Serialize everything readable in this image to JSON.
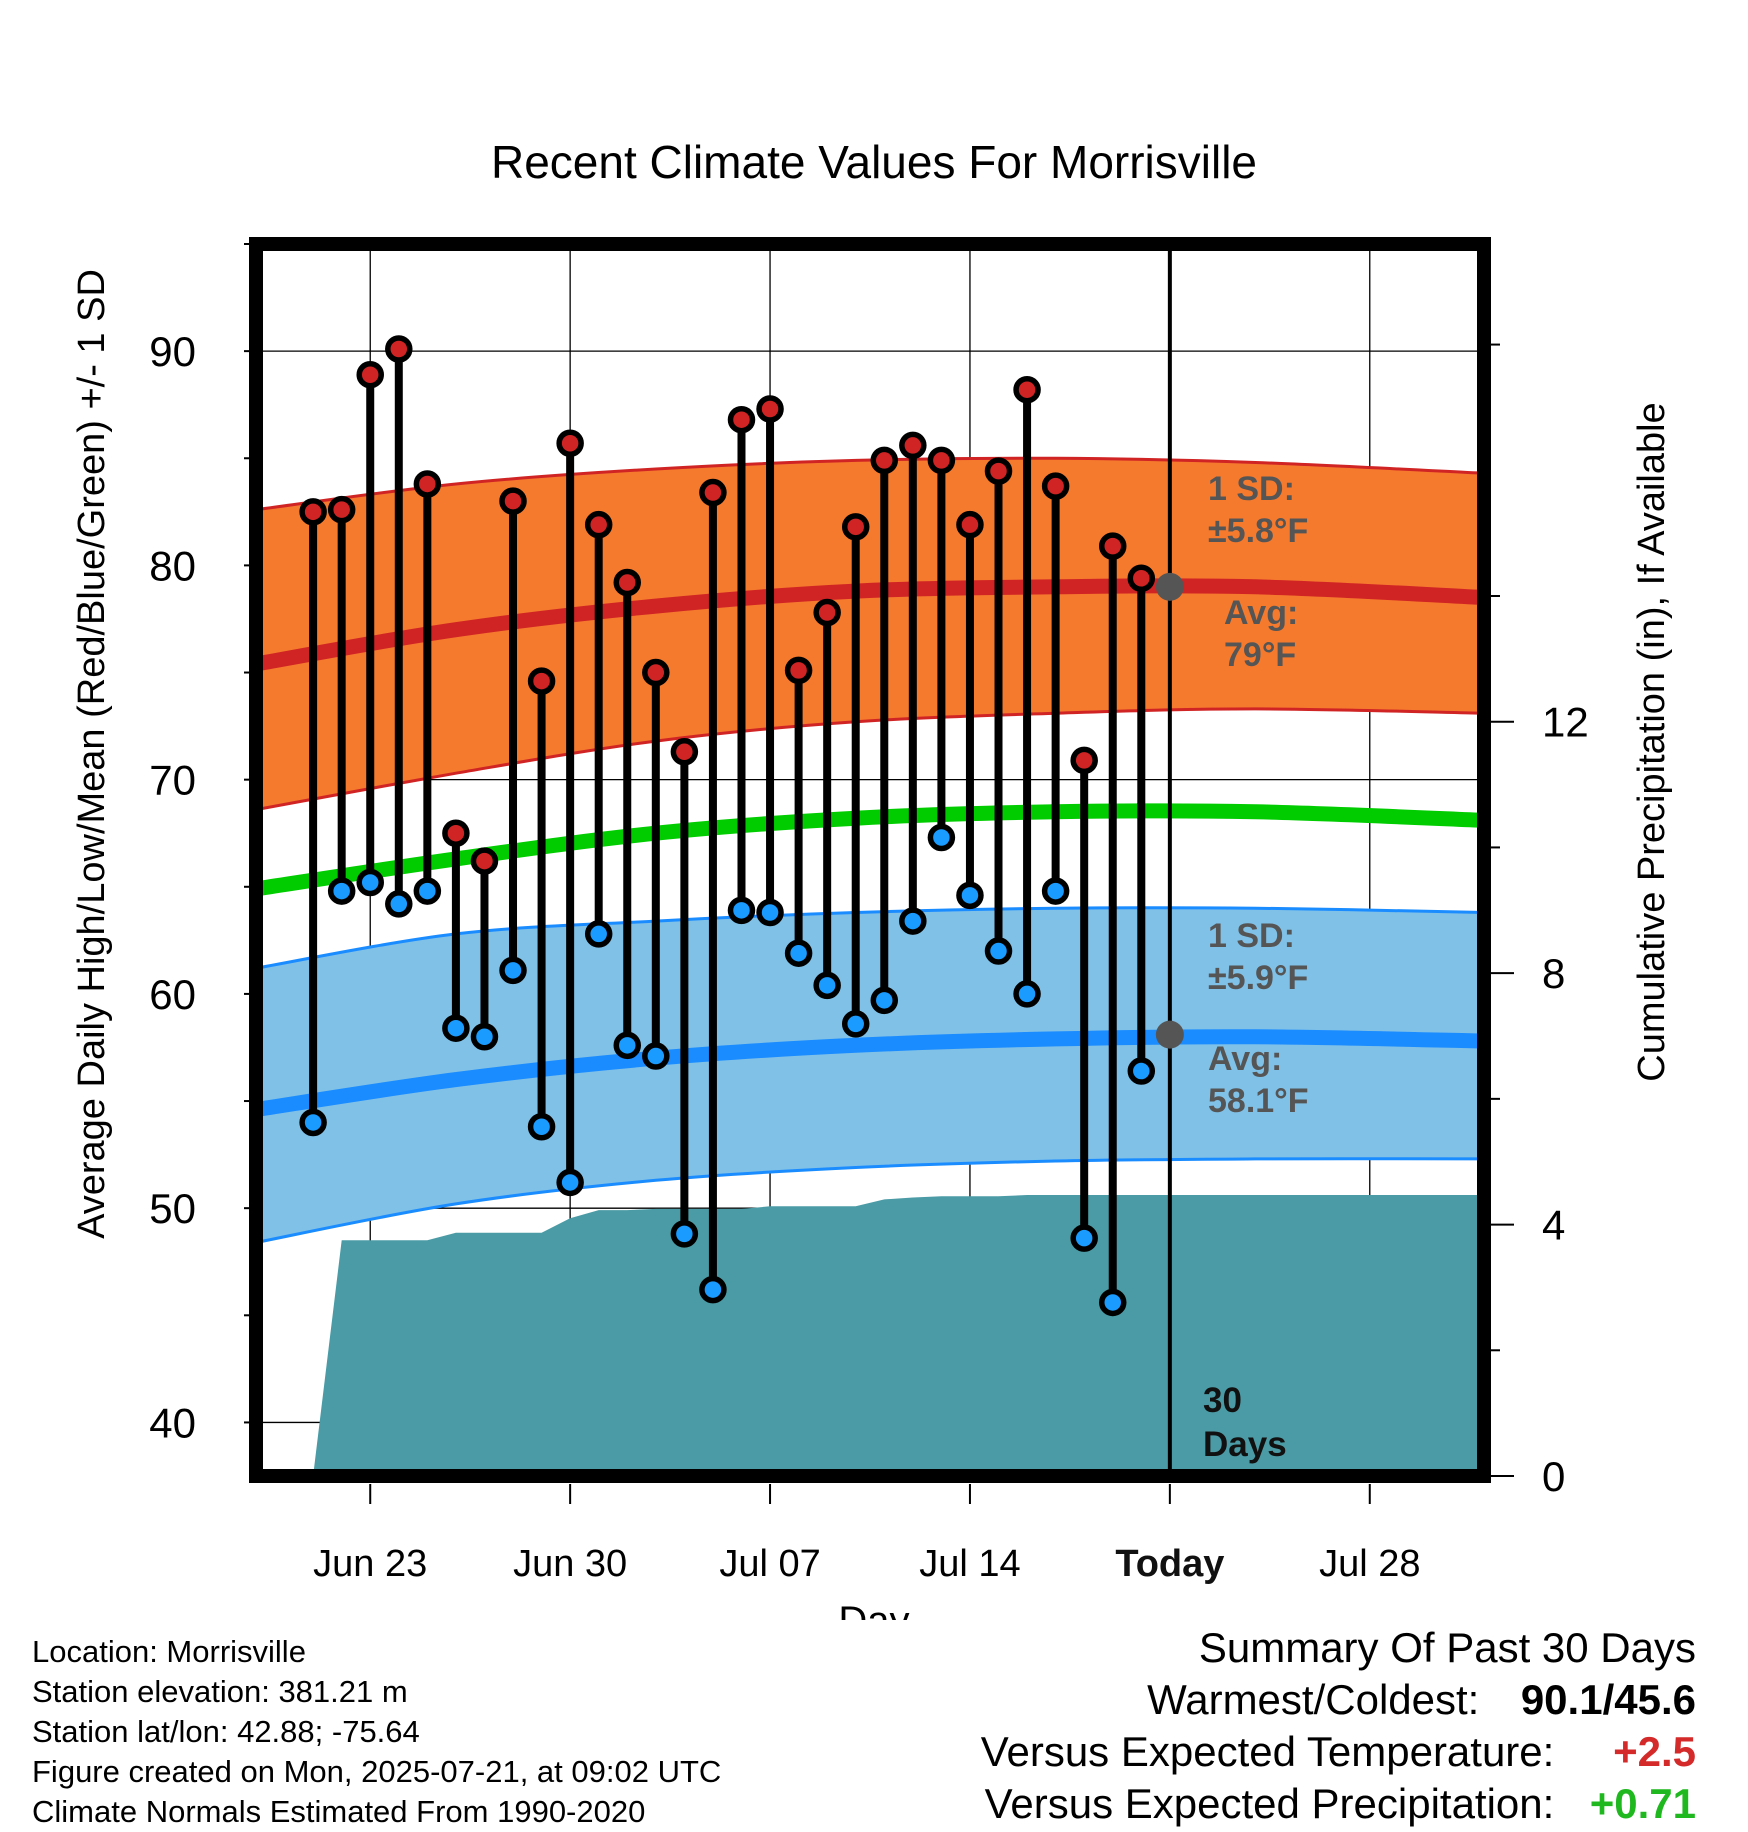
{
  "chart_data": {
    "type": "line",
    "title": "Recent Climate Values For Morrisville",
    "xlabel": "Day",
    "ylabel": "Average Daily High/Low/Mean (Red/Blue/Green) +/- 1 SD",
    "y2label": "Cumulative Precipitation (in), If Available",
    "ylim": [
      37.5,
      95
    ],
    "y2lim": [
      0,
      19.6
    ],
    "xlim": [
      "2025-06-19",
      "2025-08-01"
    ],
    "yticks": [
      "40",
      "50",
      "60",
      "70",
      "80",
      "90"
    ],
    "y2ticks": [
      "0",
      "4",
      "8",
      "12"
    ],
    "xticks": [
      {
        "date": "2025-06-23",
        "label": "Jun 23"
      },
      {
        "date": "2025-06-30",
        "label": "Jun 30"
      },
      {
        "date": "2025-07-07",
        "label": "Jul 07"
      },
      {
        "date": "2025-07-14",
        "label": "Jul 14"
      },
      {
        "date": "2025-07-21",
        "label": "Today"
      },
      {
        "date": "2025-07-28",
        "label": "Jul 28"
      }
    ],
    "today": "2025-07-21",
    "today_label": [
      "30",
      "Days"
    ],
    "grid": true,
    "high_sd_label": [
      "1 SD:",
      "±5.8°F"
    ],
    "high_avg_label": [
      "Avg:",
      "79°F"
    ],
    "low_sd_label": [
      "1 SD:",
      "±5.9°F"
    ],
    "low_avg_label": [
      "Avg:",
      "58.1°F"
    ],
    "normals": {
      "dates": [
        "2025-06-19",
        "2025-06-26",
        "2025-07-03",
        "2025-07-10",
        "2025-07-17",
        "2025-07-24",
        "2025-08-01"
      ],
      "high_upper": [
        82.6,
        83.8,
        84.5,
        84.9,
        85.0,
        84.8,
        84.3
      ],
      "high_mean": [
        75.4,
        77.0,
        78.1,
        78.8,
        79.0,
        79.0,
        78.5
      ],
      "high_lower": [
        68.6,
        70.3,
        71.8,
        72.7,
        73.1,
        73.3,
        73.1
      ],
      "mean": [
        64.9,
        66.3,
        67.5,
        68.2,
        68.5,
        68.5,
        68.1
      ],
      "low_upper": [
        61.2,
        62.8,
        63.4,
        63.8,
        64.0,
        64.0,
        63.8
      ],
      "low_mean": [
        54.6,
        56.0,
        57.0,
        57.6,
        57.9,
        58.0,
        57.8
      ],
      "low_lower": [
        48.4,
        50.2,
        51.3,
        51.9,
        52.2,
        52.3,
        52.3
      ]
    },
    "today_high_avg": 79.0,
    "today_low_avg": 58.1,
    "daily": {
      "dates": [
        "2025-06-21",
        "2025-06-22",
        "2025-06-23",
        "2025-06-24",
        "2025-06-25",
        "2025-06-26",
        "2025-06-27",
        "2025-06-28",
        "2025-06-29",
        "2025-06-30",
        "2025-07-01",
        "2025-07-02",
        "2025-07-03",
        "2025-07-04",
        "2025-07-05",
        "2025-07-06",
        "2025-07-07",
        "2025-07-08",
        "2025-07-09",
        "2025-07-10",
        "2025-07-11",
        "2025-07-12",
        "2025-07-13",
        "2025-07-14",
        "2025-07-15",
        "2025-07-16",
        "2025-07-17",
        "2025-07-18",
        "2025-07-19",
        "2025-07-20"
      ],
      "high": [
        82.5,
        82.6,
        88.9,
        90.1,
        83.8,
        67.5,
        66.2,
        83.0,
        74.6,
        85.7,
        81.9,
        79.2,
        75.0,
        71.3,
        83.4,
        86.8,
        87.3,
        75.1,
        77.8,
        81.8,
        84.9,
        85.6,
        84.9,
        81.9,
        84.4,
        88.2,
        83.7,
        70.9,
        80.9,
        79.4
      ],
      "low": [
        54.0,
        64.8,
        65.2,
        64.2,
        64.8,
        58.4,
        58.0,
        61.1,
        53.8,
        51.2,
        62.8,
        57.6,
        57.1,
        48.8,
        46.2,
        63.9,
        63.8,
        61.9,
        60.4,
        58.6,
        59.7,
        63.4,
        67.3,
        64.6,
        62.0,
        60.0,
        64.8,
        48.6,
        45.6,
        56.4
      ]
    },
    "precip": {
      "dates": [
        "2025-06-20",
        "2025-06-21",
        "2025-06-22",
        "2025-06-23",
        "2025-06-24",
        "2025-06-25",
        "2025-06-26",
        "2025-06-27",
        "2025-06-28",
        "2025-06-29",
        "2025-06-30",
        "2025-07-01",
        "2025-07-02",
        "2025-07-03",
        "2025-07-04",
        "2025-07-05",
        "2025-07-06",
        "2025-07-07",
        "2025-07-08",
        "2025-07-09",
        "2025-07-10",
        "2025-07-11",
        "2025-07-12",
        "2025-07-13",
        "2025-07-14",
        "2025-07-15",
        "2025-07-16",
        "2025-07-17",
        "2025-07-18",
        "2025-07-19",
        "2025-08-01"
      ],
      "values": [
        0,
        0,
        3.75,
        3.75,
        3.75,
        3.75,
        3.87,
        3.87,
        3.87,
        3.87,
        4.1,
        4.23,
        4.23,
        4.25,
        4.25,
        4.25,
        4.25,
        4.29,
        4.29,
        4.29,
        4.29,
        4.4,
        4.43,
        4.45,
        4.45,
        4.45,
        4.47,
        4.47,
        4.47,
        4.47,
        4.47
      ]
    },
    "colors": {
      "high_band": "#f57a2e",
      "high_mean": "#d02424",
      "low_band": "#80c1e7",
      "low_mean": "#1a8cff",
      "mean": "#00cc00",
      "precip": "#4a9ba5",
      "high_marker": "#d02424",
      "low_marker": "#1a9bff",
      "avg_marker": "#555555",
      "label_text": "#555555"
    }
  },
  "footer": {
    "location": "Location: Morrisville",
    "elevation": "Station elevation: 381.21 m",
    "latlon": "Station lat/lon: 42.88; -75.64",
    "created": "Figure created on Mon, 2025-07-21, at 09:02 UTC",
    "normals": "Climate Normals Estimated From 1990-2020"
  },
  "summary": {
    "title": "Summary Of Past 30 Days",
    "warmest_label": "Warmest/Coldest:",
    "warmest_value": "90.1/45.6",
    "temp_label": "Versus Expected Temperature:",
    "temp_value": "+2.5",
    "precip_label": "Versus Expected Precipitation:",
    "precip_value": "+0.71"
  }
}
